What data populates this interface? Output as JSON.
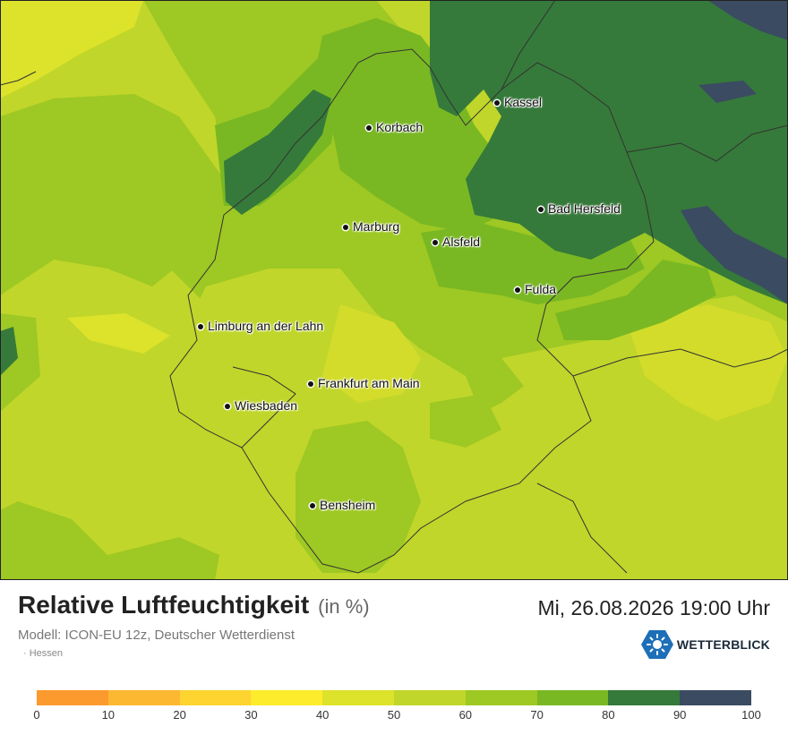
{
  "map": {
    "region": "Hessen",
    "cities": [
      {
        "name": "Kassel"
      },
      {
        "name": "Korbach"
      },
      {
        "name": "Bad Hersfeld"
      },
      {
        "name": "Marburg"
      },
      {
        "name": "Alsfeld"
      },
      {
        "name": "Fulda"
      },
      {
        "name": "Limburg an der Lahn"
      },
      {
        "name": "Frankfurt am Main"
      },
      {
        "name": "Wiesbaden"
      },
      {
        "name": "Bensheim"
      }
    ]
  },
  "header": {
    "title": "Relative Luftfeuchtigkeit",
    "unit": "(in %)",
    "datetime": "Mi, 26.08.2026 19:00 Uhr",
    "model": "Modell: ICON-EU 12z, Deutscher Wetterdienst",
    "region": "· Hessen"
  },
  "brand": {
    "name": "WETTERBLICK",
    "icon": "sun-logo-icon",
    "color": "#1d6fb8"
  },
  "legend": {
    "ticks": [
      "0",
      "10",
      "20",
      "30",
      "40",
      "50",
      "60",
      "70",
      "80",
      "90",
      "100"
    ],
    "colors": [
      "#fd9a2e",
      "#fdb832",
      "#fdd430",
      "#fdec2c",
      "#dde22b",
      "#c0d62a",
      "#9ec823",
      "#79b823",
      "#357a3a",
      "#3b4b62"
    ]
  }
}
